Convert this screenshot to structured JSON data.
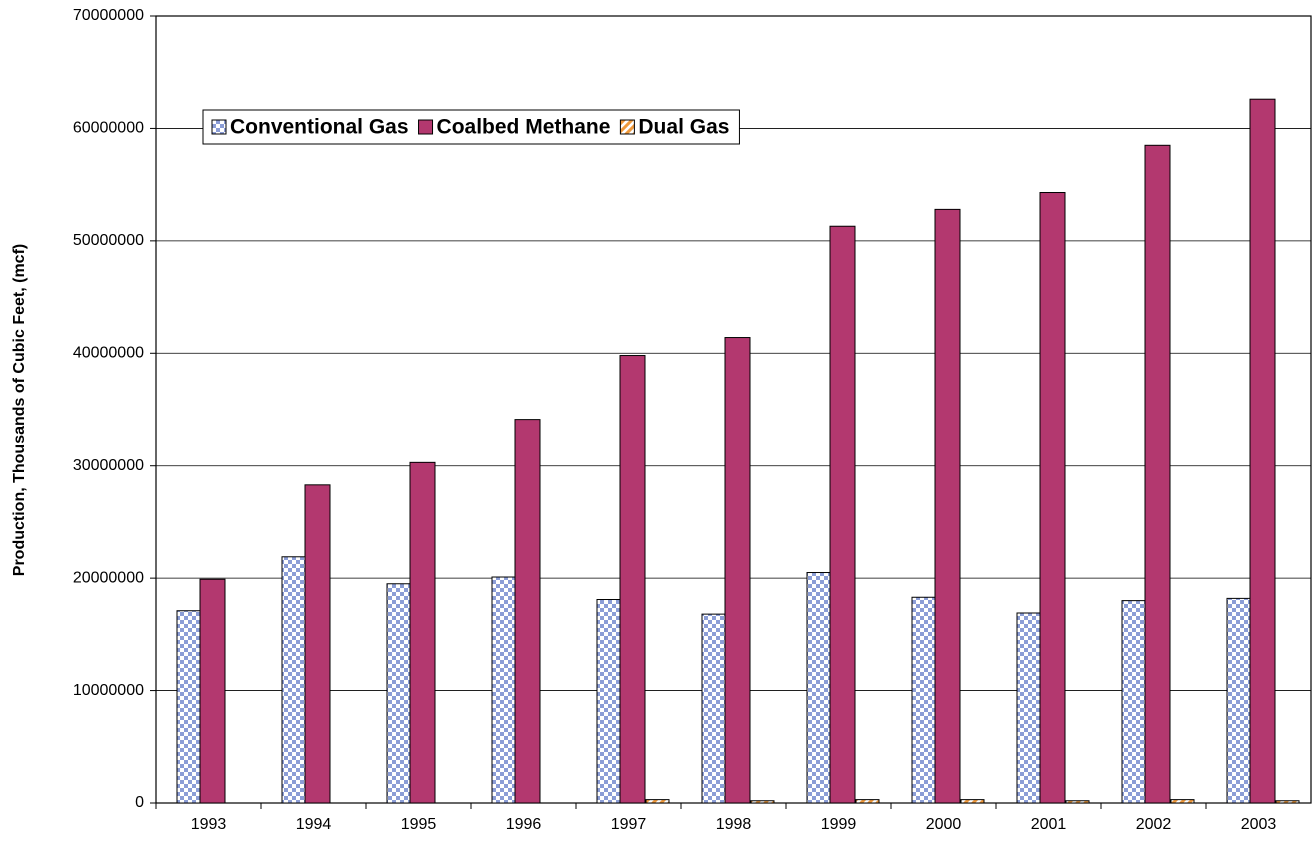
{
  "chart_data": {
    "type": "bar",
    "y_label": "Production, Thousands of Cubic Feet, (mcf)",
    "categories": [
      "1993",
      "1994",
      "1995",
      "1996",
      "1997",
      "1998",
      "1999",
      "2000",
      "2001",
      "2002",
      "2003"
    ],
    "series": [
      {
        "name": "Conventional Gas",
        "color": "#8b9dd6",
        "pattern": "checkerboard",
        "values": [
          17100000,
          21900000,
          19500000,
          20100000,
          18100000,
          16800000,
          20500000,
          18300000,
          16900000,
          18000000,
          18200000
        ]
      },
      {
        "name": "Coalbed Methane",
        "color": "#b3386f",
        "pattern": "solid",
        "values": [
          19900000,
          28300000,
          30300000,
          34100000,
          39800000,
          41400000,
          51300000,
          52800000,
          54300000,
          58500000,
          62600000
        ]
      },
      {
        "name": "Dual Gas",
        "color": "#f09a3c",
        "pattern": "diagonal",
        "values": [
          0,
          0,
          0,
          0,
          300000,
          200000,
          300000,
          300000,
          200000,
          300000,
          200000
        ]
      }
    ],
    "ylim": [
      0,
      70000000
    ],
    "yticks": [
      0,
      10000000,
      20000000,
      30000000,
      40000000,
      50000000,
      60000000,
      70000000
    ],
    "grid": true
  }
}
